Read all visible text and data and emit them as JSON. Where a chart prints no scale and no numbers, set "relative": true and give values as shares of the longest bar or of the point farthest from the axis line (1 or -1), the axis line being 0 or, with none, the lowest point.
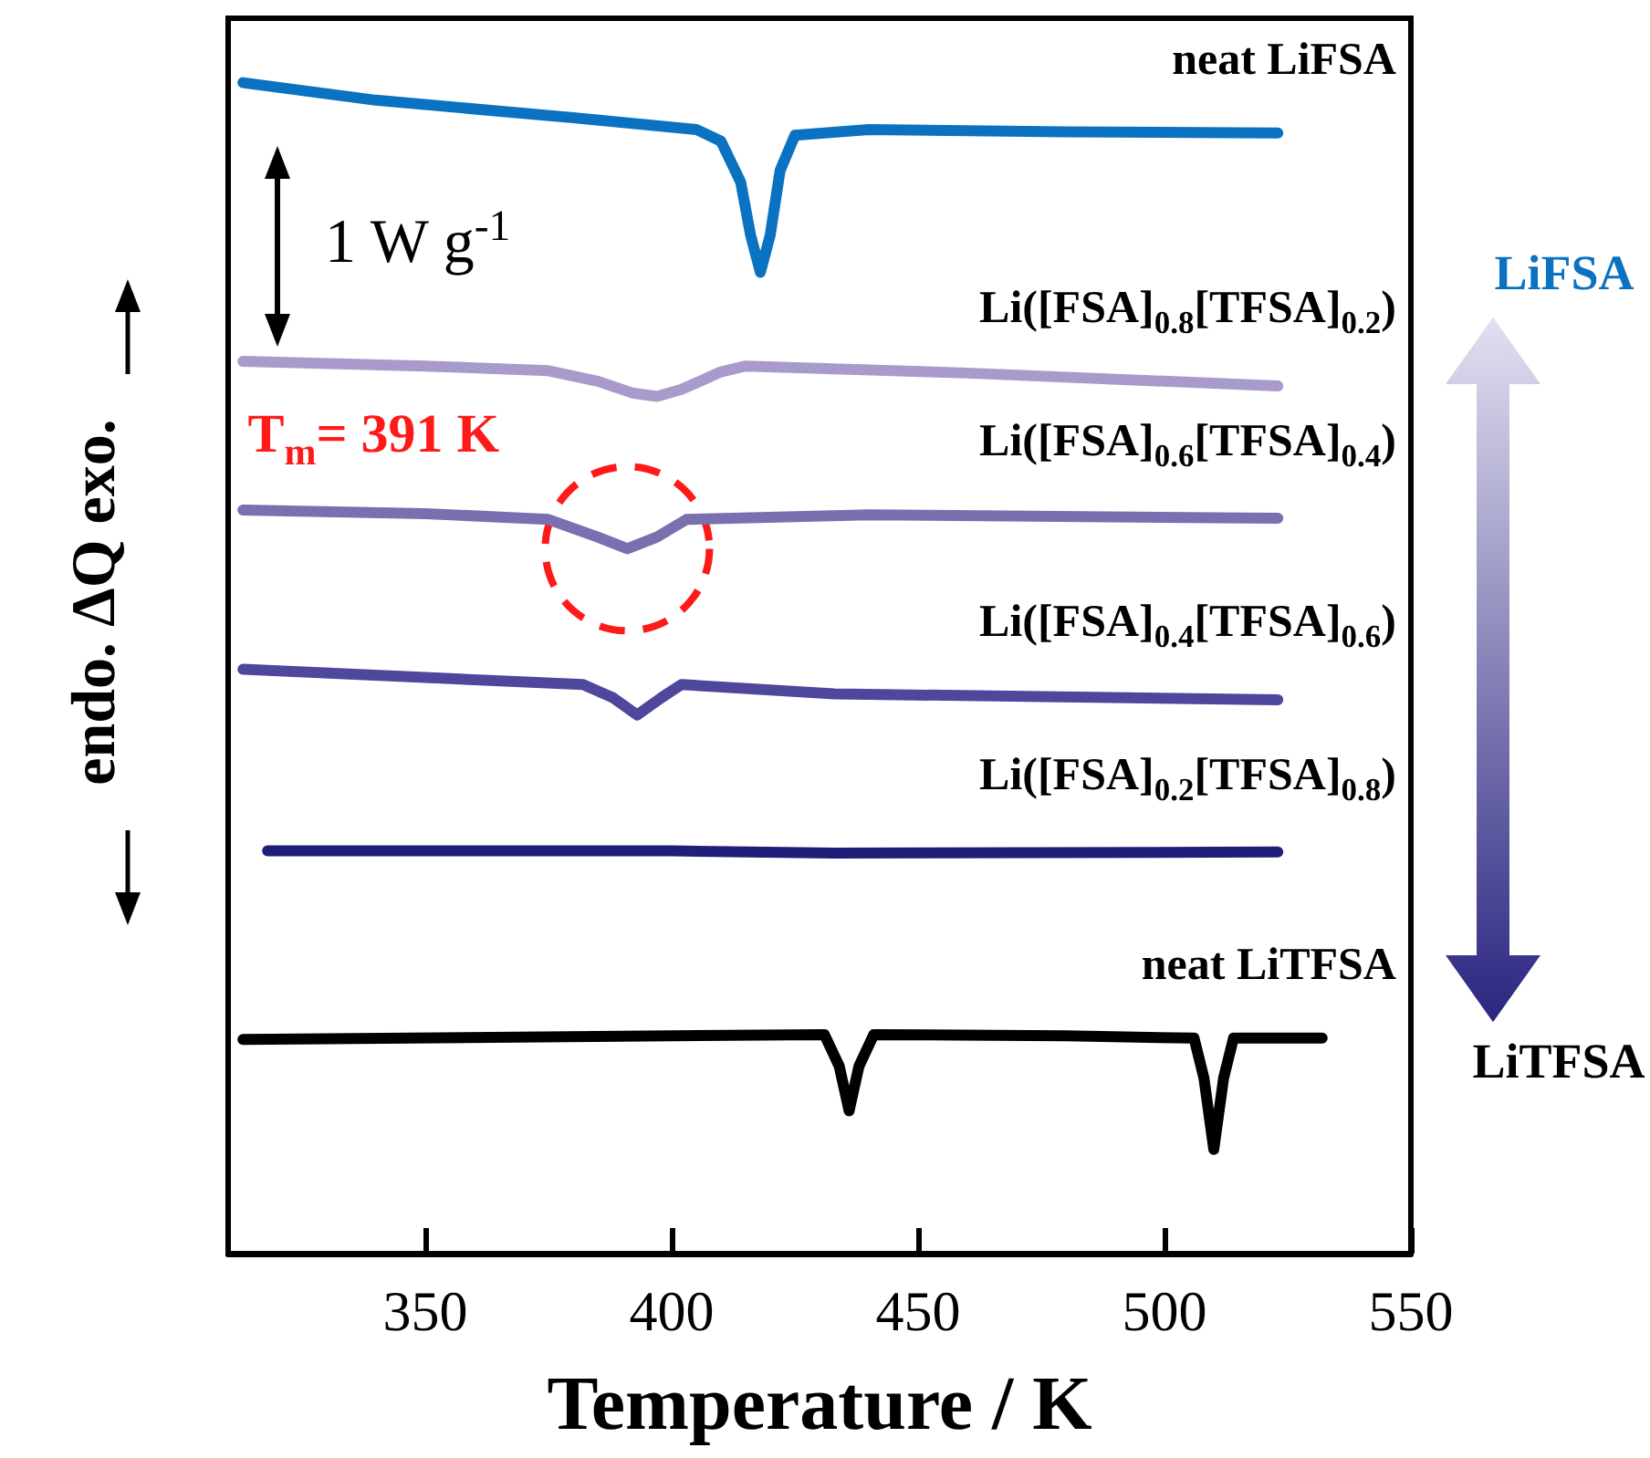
{
  "chart_data": {
    "type": "line",
    "relative": true,
    "xlabel": "Temperature / K",
    "ylabel": "endo. ΔQ exo.",
    "xlim": [
      310,
      550
    ],
    "xticks": [
      350,
      400,
      450,
      500,
      550
    ],
    "grid": false,
    "legend": false,
    "marker": "none",
    "line_style": "solid",
    "annotations": [
      "1 W g$^{-1}$",
      {
        "text": "T$_{m}$= 391 K",
        "x": 391,
        "y": 0.602
      },
      "LiFSA",
      "LiTFSA"
    ],
    "series": [
      {
        "name": "neat LiFSA",
        "color": "#0a72c0",
        "x": [
          313,
          340,
          380,
          405,
          410,
          414,
          416,
          418,
          420,
          422,
          425,
          440,
          480,
          523
        ],
        "values": [
          1.0,
          0.985,
          0.97,
          0.96,
          0.95,
          0.915,
          0.87,
          0.838,
          0.87,
          0.925,
          0.955,
          0.96,
          0.958,
          0.957
        ]
      },
      {
        "name": "Li([FSA]$_{0.8}$[TFSA]$_{0.2}$)",
        "color": "#a89bcc",
        "x": [
          313,
          350,
          375,
          385,
          392,
          397,
          402,
          410,
          415,
          460,
          523
        ],
        "values": [
          0.762,
          0.758,
          0.754,
          0.745,
          0.735,
          0.732,
          0.738,
          0.753,
          0.758,
          0.752,
          0.741
        ]
      },
      {
        "name": "Li([FSA]$_{0.6}$[TFSA]$_{0.4}$)",
        "color": "#7b6fb0",
        "x": [
          313,
          350,
          375,
          385,
          391,
          397,
          403,
          440,
          523
        ],
        "values": [
          0.635,
          0.632,
          0.627,
          0.612,
          0.602,
          0.612,
          0.627,
          0.631,
          0.628
        ]
      },
      {
        "name": "Li([FSA]$_{0.4}$[TFSA]$_{0.6}$)",
        "color": "#4e479c",
        "x": [
          313,
          350,
          382,
          388,
          393,
          398,
          402,
          433,
          523
        ],
        "values": [
          0.499,
          0.492,
          0.486,
          0.475,
          0.46,
          0.475,
          0.486,
          0.478,
          0.473
        ]
      },
      {
        "name": "Li([FSA]$_{0.2}$[TFSA]$_{0.8}$)",
        "color": "#1f1f7a",
        "x": [
          318,
          400,
          433,
          523
        ],
        "values": [
          0.344,
          0.344,
          0.342,
          0.343
        ]
      },
      {
        "name": "neat LiTFSA",
        "color": "#000000",
        "x": [
          313,
          400,
          431,
          434,
          436,
          438,
          441,
          480,
          506,
          508,
          510,
          512,
          514,
          532
        ],
        "values": [
          0.183,
          0.186,
          0.187,
          0.16,
          0.122,
          0.16,
          0.187,
          0.186,
          0.184,
          0.15,
          0.089,
          0.15,
          0.184,
          0.184
        ]
      }
    ]
  }
}
